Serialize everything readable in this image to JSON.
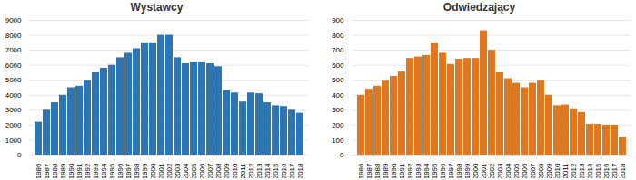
{
  "chart_data": [
    {
      "type": "bar",
      "title": "Wystawcy",
      "categories": [
        "1986",
        "1987",
        "1988",
        "1989",
        "1990",
        "1991",
        "1992",
        "1993",
        "1994",
        "1995",
        "1996",
        "1997",
        "1998",
        "1999",
        "2000",
        "2001",
        "2002",
        "2003",
        "2004",
        "2005",
        "2006",
        "2007",
        "2008",
        "2009",
        "2010",
        "2011",
        "2012",
        "2013",
        "2014",
        "2015",
        "2016",
        "2017",
        "2018"
      ],
      "values": [
        2200,
        3000,
        3500,
        4000,
        4500,
        4600,
        5000,
        5500,
        5800,
        6000,
        6500,
        6800,
        7100,
        7500,
        7500,
        8000,
        8000,
        6500,
        6100,
        6200,
        6200,
        6100,
        5900,
        4300,
        4150,
        3550,
        4150,
        4100,
        3500,
        3300,
        3250,
        3000,
        2800
      ],
      "color": "#2E75B6",
      "ylim": [
        0,
        9000
      ],
      "yticks": [
        0,
        1000,
        2000,
        3000,
        4000,
        5000,
        6000,
        7000,
        8000,
        9000
      ],
      "grid": true
    },
    {
      "type": "bar",
      "title": "Odwiedzający",
      "categories": [
        "1986",
        "1987",
        "1988",
        "1989",
        "1990",
        "1991",
        "1992",
        "1993",
        "1994",
        "1995",
        "1996",
        "1997",
        "1998",
        "1999",
        "2000",
        "2001",
        "2002",
        "2003",
        "2004",
        "2005",
        "2006",
        "2007",
        "2008",
        "2009",
        "2010",
        "2011",
        "2012",
        "2013",
        "2014",
        "2015",
        "2016",
        "2017",
        "2018"
      ],
      "values": [
        400,
        440,
        460,
        500,
        525,
        555,
        645,
        655,
        665,
        750,
        680,
        605,
        640,
        645,
        645,
        830,
        700,
        550,
        510,
        480,
        450,
        480,
        500,
        400,
        330,
        335,
        310,
        285,
        205,
        205,
        200,
        200,
        120
      ],
      "color": "#E07820",
      "ylim": [
        0,
        900
      ],
      "yticks": [
        0,
        100,
        200,
        300,
        400,
        500,
        600,
        700,
        800,
        900
      ],
      "grid": true
    }
  ]
}
